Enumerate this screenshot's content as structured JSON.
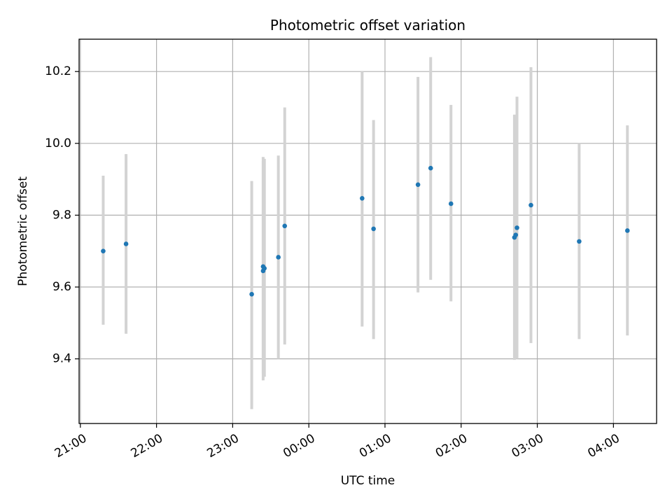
{
  "chart_data": {
    "type": "scatter",
    "title": "Photometric offset variation",
    "xlabel": "UTC time",
    "ylabel": "Photometric offset",
    "x_unit": "UTC time (HH:MM)",
    "xlim": [
      "20:59",
      "04:34"
    ],
    "ylim": [
      9.22,
      10.29
    ],
    "x_ticks": [
      "21:00",
      "22:00",
      "23:00",
      "00:00",
      "01:00",
      "02:00",
      "03:00",
      "04:00"
    ],
    "y_ticks": [
      9.4,
      9.6,
      9.8,
      10.0,
      10.2
    ],
    "grid": true,
    "marker_color": "#1f77b4",
    "errorbar_color": "#d3d3d3",
    "points": [
      {
        "x": "21:18",
        "y": 9.7,
        "low": 9.495,
        "high": 9.91
      },
      {
        "x": "21:36",
        "y": 9.72,
        "low": 9.47,
        "high": 9.97
      },
      {
        "x": "23:15",
        "y": 9.58,
        "low": 9.26,
        "high": 9.895
      },
      {
        "x": "23:24",
        "y": 9.657,
        "low": 9.34,
        "high": 9.962
      },
      {
        "x": "23:24",
        "y": 9.645,
        "low": 9.36,
        "high": 9.95
      },
      {
        "x": "23:25",
        "y": 9.652,
        "low": 9.35,
        "high": 9.957
      },
      {
        "x": "23:36",
        "y": 9.683,
        "low": 9.4,
        "high": 9.966
      },
      {
        "x": "23:41",
        "y": 9.77,
        "low": 9.44,
        "high": 10.1
      },
      {
        "x": "00:42",
        "y": 9.847,
        "low": 9.49,
        "high": 10.2
      },
      {
        "x": "00:51",
        "y": 9.762,
        "low": 9.455,
        "high": 10.065
      },
      {
        "x": "01:26",
        "y": 9.885,
        "low": 9.585,
        "high": 10.185
      },
      {
        "x": "01:36",
        "y": 9.931,
        "low": 9.62,
        "high": 10.24
      },
      {
        "x": "01:52",
        "y": 9.832,
        "low": 9.56,
        "high": 10.107
      },
      {
        "x": "02:42",
        "y": 9.738,
        "low": 9.397,
        "high": 10.08
      },
      {
        "x": "02:43",
        "y": 9.745,
        "low": 9.4,
        "high": 10.075
      },
      {
        "x": "02:44",
        "y": 9.765,
        "low": 9.4,
        "high": 10.13
      },
      {
        "x": "02:55",
        "y": 9.828,
        "low": 9.444,
        "high": 10.212
      },
      {
        "x": "03:33",
        "y": 9.727,
        "low": 9.455,
        "high": 10.0
      },
      {
        "x": "04:11",
        "y": 9.757,
        "low": 9.465,
        "high": 10.05
      }
    ]
  }
}
